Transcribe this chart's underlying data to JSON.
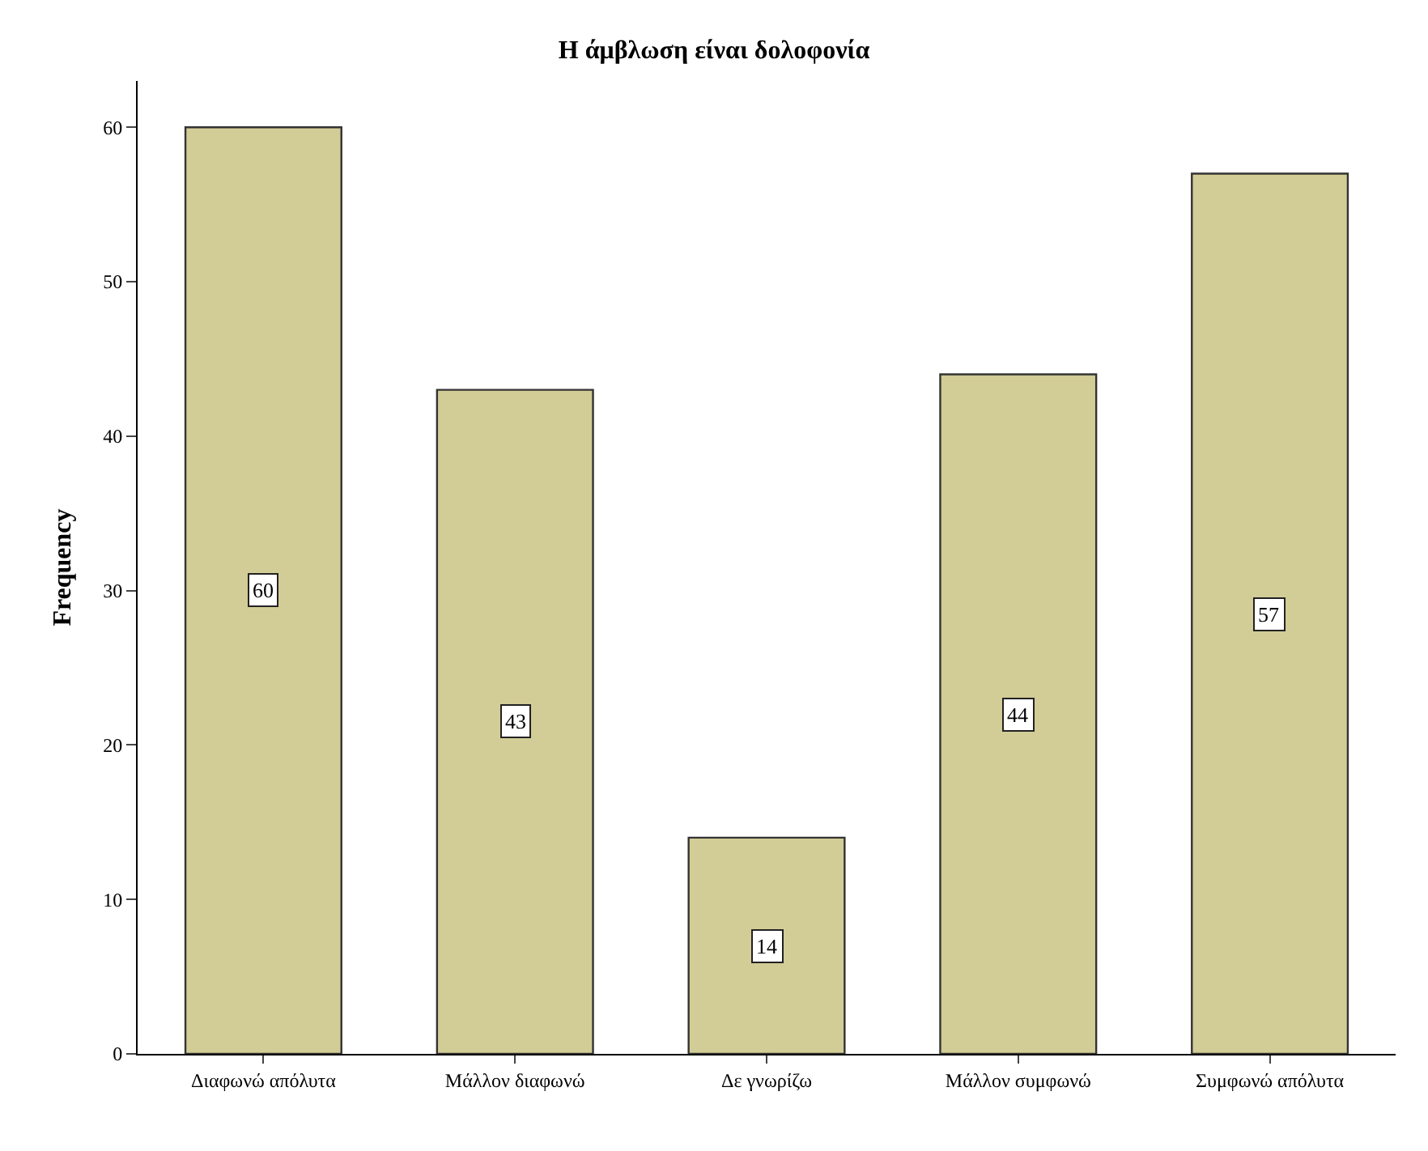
{
  "chart_data": {
    "type": "bar",
    "title": "Η άμβλωση είναι δολοφονία",
    "ylabel": "Frequency",
    "categories": [
      "Διαφωνώ απόλυτα",
      "Μάλλον διαφωνώ",
      "Δε γνωρίζω",
      "Μάλλον συμφωνώ",
      "Συμφωνώ απόλυτα"
    ],
    "values": [
      60,
      43,
      14,
      44,
      57
    ],
    "color": "#d2cc96",
    "ylim": [
      0,
      63
    ],
    "yticks": [
      0,
      10,
      20,
      30,
      40,
      50,
      60
    ],
    "data_labels": true
  }
}
